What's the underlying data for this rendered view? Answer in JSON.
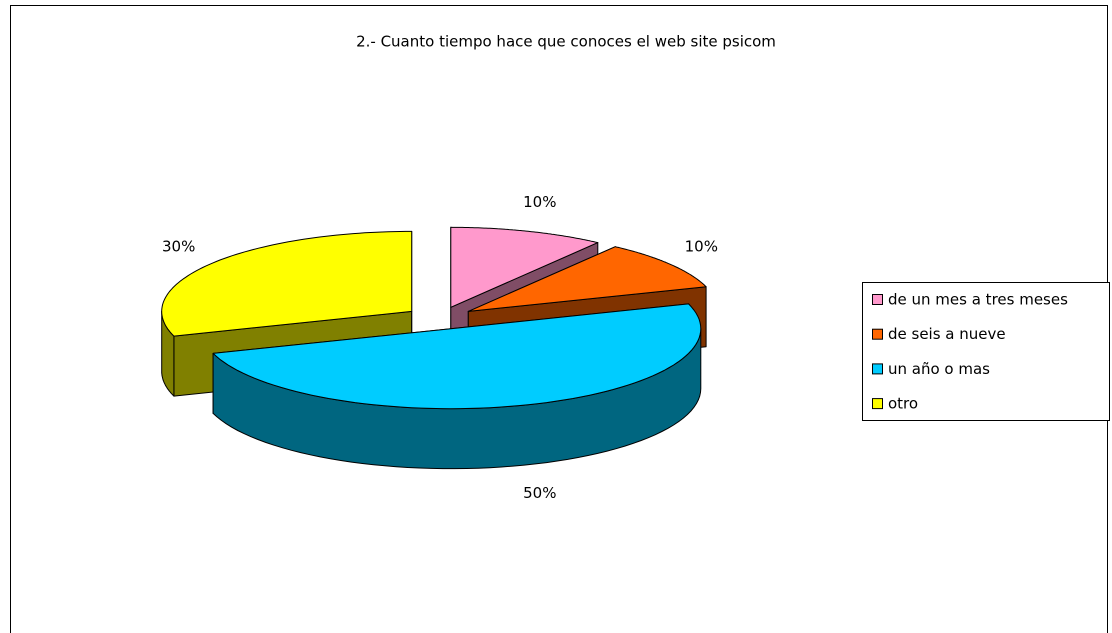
{
  "chart_data": {
    "type": "pie3d",
    "title": "2.- Cuanto tiempo hace que conoces el web site psicom",
    "categories": [
      "de un mes a tres meses",
      "de seis a nueve",
      "un año o mas",
      "otro"
    ],
    "values": [
      10,
      10,
      50,
      30
    ],
    "value_labels": [
      "10%",
      "10%",
      "50%",
      "30%"
    ],
    "colors": [
      "#ff99cc",
      "#ff6600",
      "#00ccff",
      "#ffff00"
    ],
    "legend": "right"
  }
}
